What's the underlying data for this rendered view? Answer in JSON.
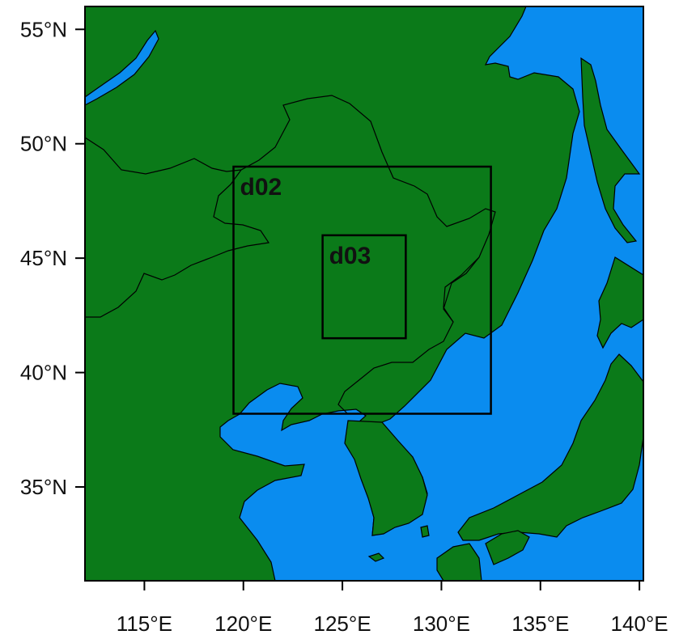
{
  "map": {
    "colors": {
      "land": "#0b7a19",
      "ocean": "#0a8cef",
      "border": "#000000",
      "frame": "#000000",
      "background": "#ffffff"
    },
    "extent": {
      "lon": [
        112,
        140.2
      ],
      "lat": [
        30.9,
        56
      ]
    },
    "lat_ticks": [
      {
        "value": 55,
        "label": "55°N"
      },
      {
        "value": 50,
        "label": "50°N"
      },
      {
        "value": 45,
        "label": "45°N"
      },
      {
        "value": 40,
        "label": "40°N"
      },
      {
        "value": 35,
        "label": "35°N"
      }
    ],
    "lon_ticks": [
      {
        "value": 115,
        "label": "115°E"
      },
      {
        "value": 120,
        "label": "120°E"
      },
      {
        "value": 125,
        "label": "125°E"
      },
      {
        "value": 130,
        "label": "130°E"
      },
      {
        "value": 135,
        "label": "135°E"
      },
      {
        "value": 140,
        "label": "140°E"
      }
    ],
    "domains": [
      {
        "name": "d02",
        "lon_min": 119.5,
        "lon_max": 132.5,
        "lat_min": 38.2,
        "lat_max": 49.0
      },
      {
        "name": "d03",
        "lon_min": 124.0,
        "lon_max": 128.2,
        "lat_min": 41.5,
        "lat_max": 46.0
      }
    ]
  }
}
